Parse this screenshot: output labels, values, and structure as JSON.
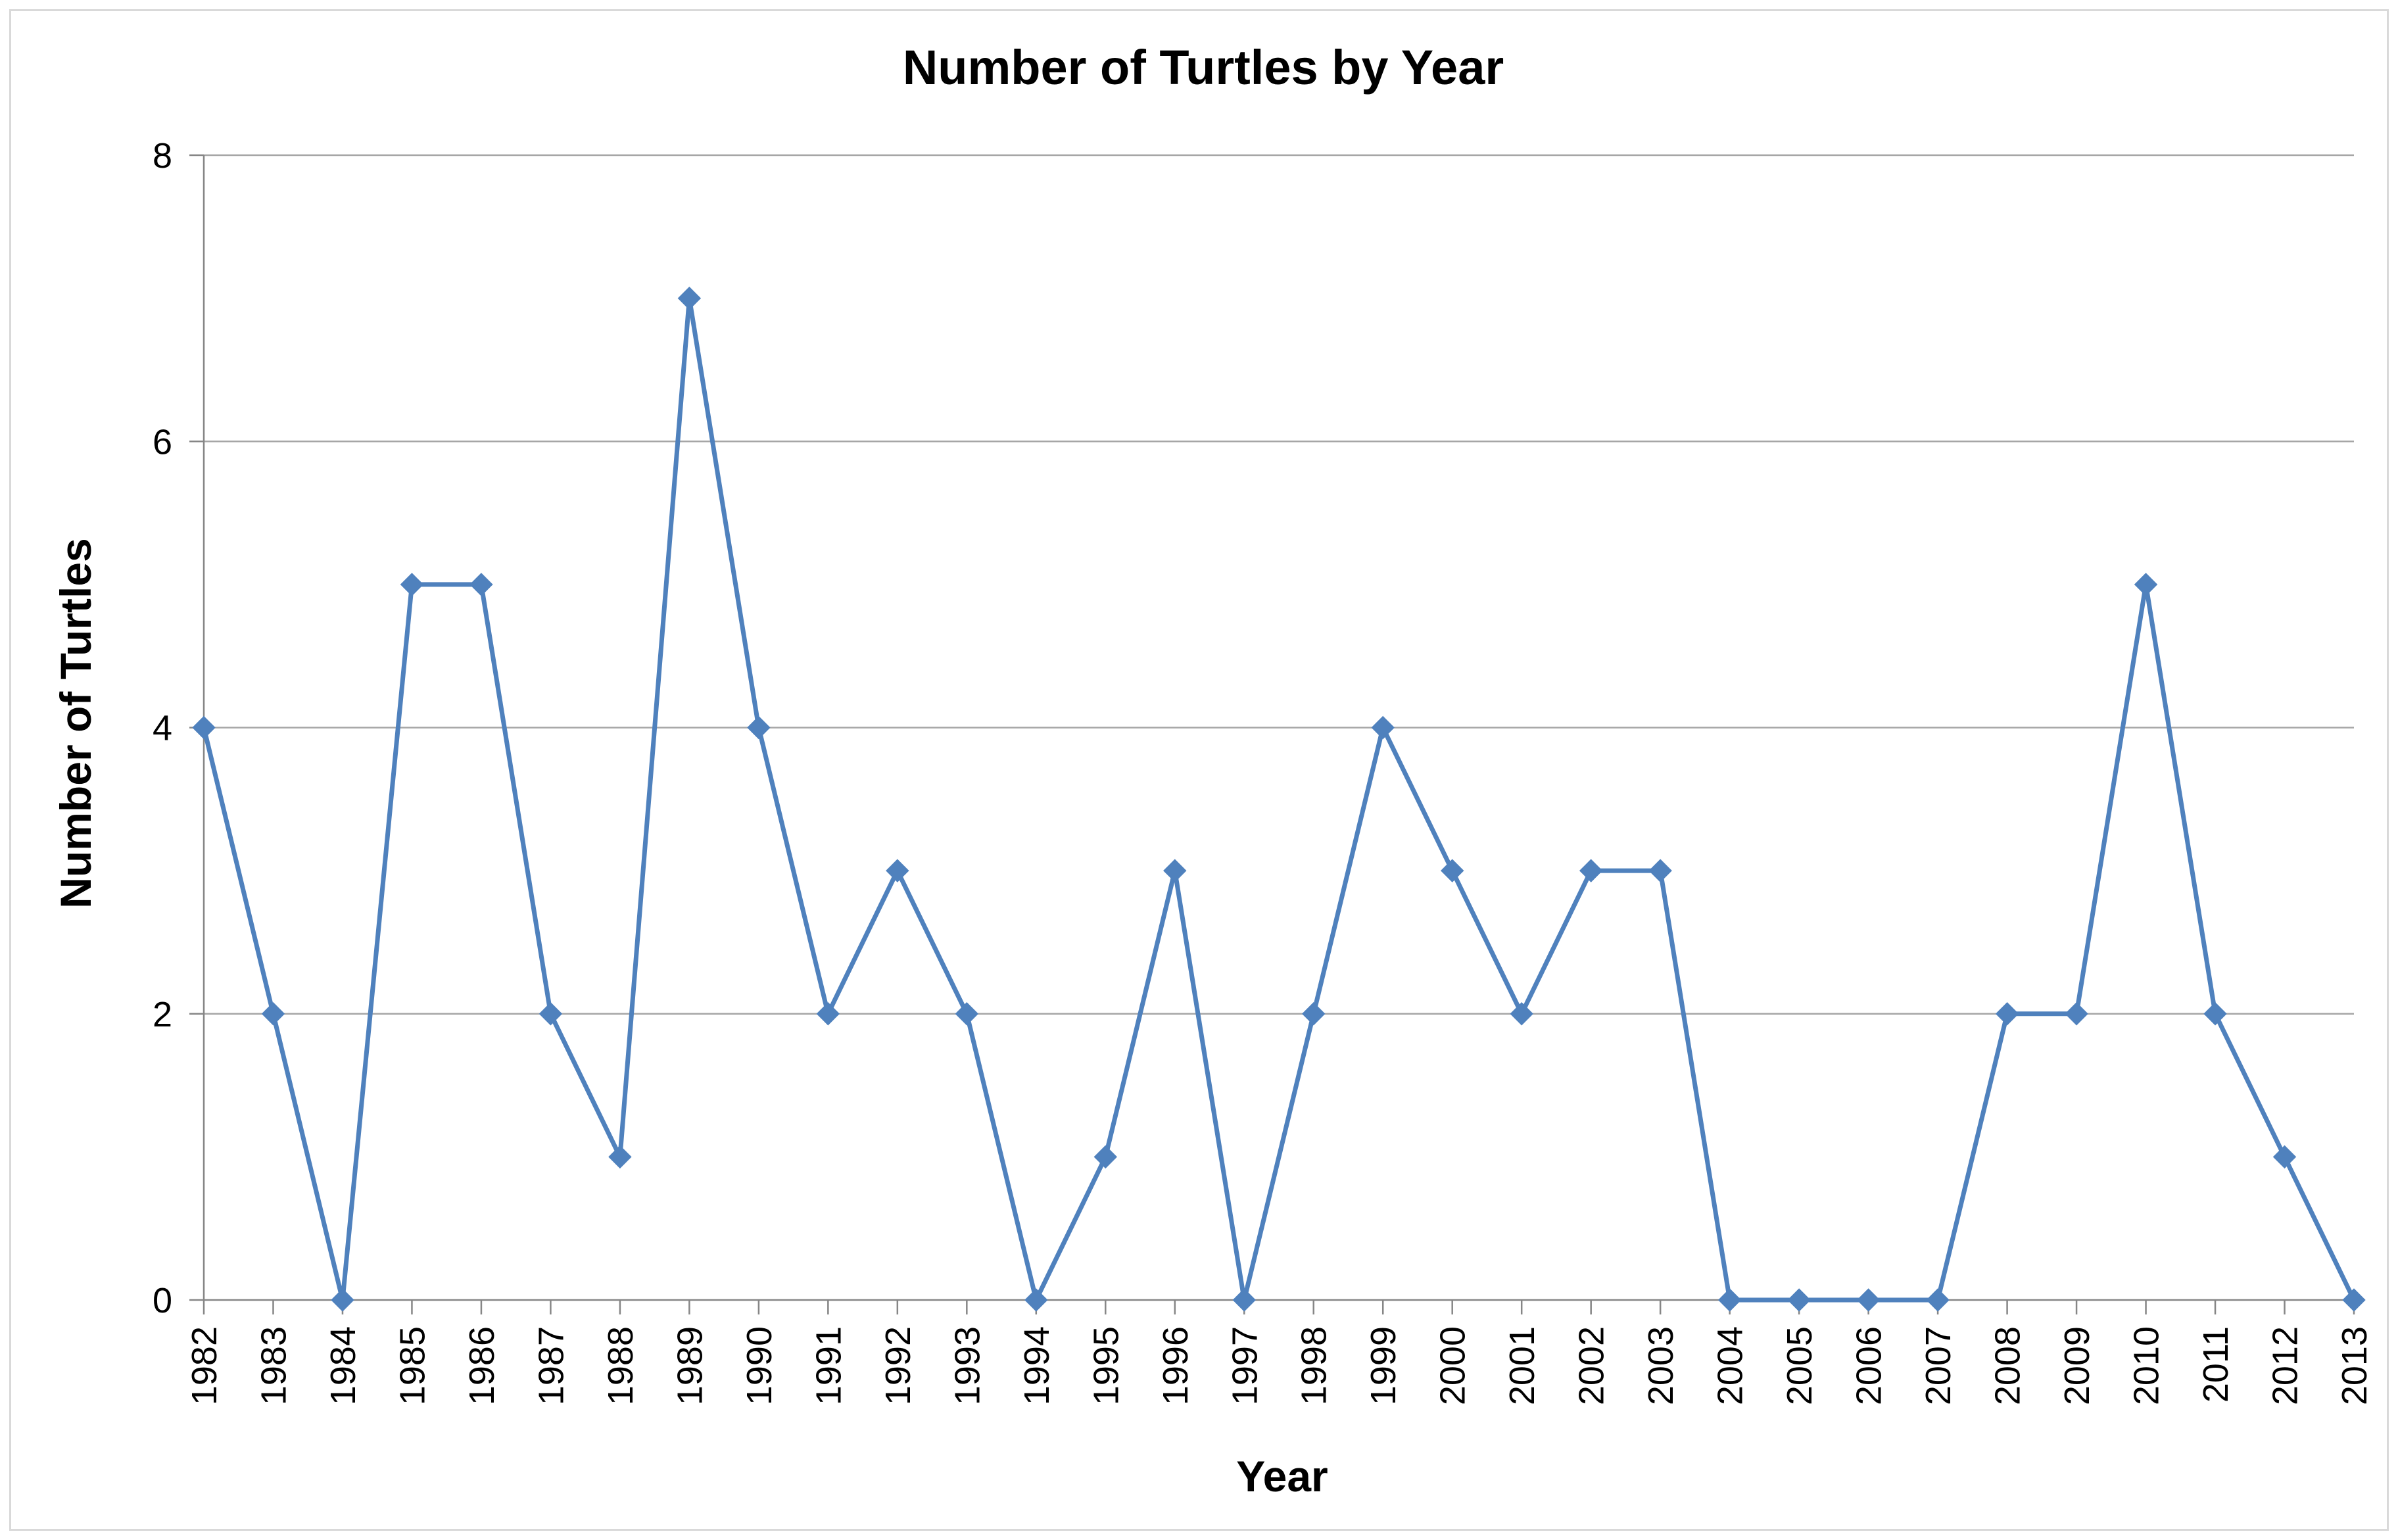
{
  "chart_data": {
    "type": "line",
    "title": "Number of Turtles by Year",
    "xlabel": "Year",
    "ylabel": "Number of Turtles",
    "categories": [
      "1982",
      "1983",
      "1984",
      "1985",
      "1986",
      "1987",
      "1988",
      "1989",
      "1990",
      "1991",
      "1992",
      "1993",
      "1994",
      "1995",
      "1996",
      "1997",
      "1998",
      "1999",
      "2000",
      "2001",
      "2002",
      "2003",
      "2004",
      "2005",
      "2006",
      "2007",
      "2008",
      "2009",
      "2010",
      "2011",
      "2012",
      "2013"
    ],
    "series": [
      {
        "values": [
          4,
          2,
          0,
          5,
          5,
          2,
          1,
          7,
          4,
          2,
          3,
          2,
          0,
          1,
          3,
          0,
          2,
          4,
          3,
          2,
          3,
          3,
          0,
          0,
          0,
          0,
          2,
          2,
          5,
          2,
          1,
          0
        ],
        "color": "#4f81bd",
        "marker": "diamond"
      }
    ],
    "ylim": [
      0,
      8
    ],
    "yticks": [
      0,
      2,
      4,
      6,
      8
    ],
    "grid": true,
    "legend": "none",
    "colors": {
      "line": "#4f81bd",
      "gridline": "#a6a6a6",
      "axis": "#868686",
      "frame": "#d9d9d9"
    }
  }
}
